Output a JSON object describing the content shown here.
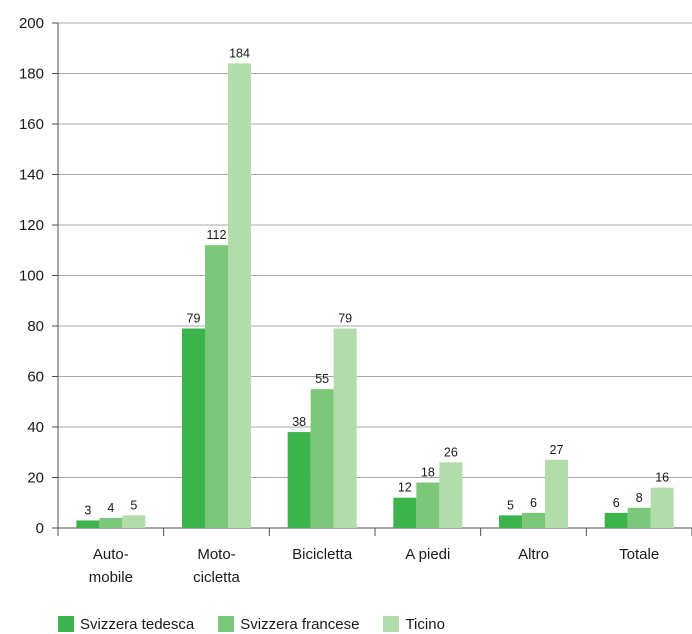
{
  "chart_data": {
    "type": "bar",
    "categories": [
      [
        "Auto-",
        "mobile"
      ],
      [
        "Moto-",
        "cicletta"
      ],
      [
        "Bicicletta"
      ],
      [
        "A piedi"
      ],
      [
        "Altro"
      ],
      [
        "Totale"
      ]
    ],
    "series": [
      {
        "name": "Svizzera tedesca",
        "color": "#3cb44b",
        "values": [
          3,
          79,
          38,
          12,
          5,
          6
        ]
      },
      {
        "name": "Svizzera francese",
        "color": "#7dc77b",
        "values": [
          4,
          112,
          55,
          18,
          6,
          8
        ]
      },
      {
        "name": "Ticino",
        "color": "#b2dca9",
        "values": [
          5,
          184,
          79,
          26,
          27,
          16
        ]
      }
    ],
    "ylim": [
      0,
      200
    ],
    "yticks": [
      0,
      20,
      40,
      60,
      80,
      100,
      120,
      140,
      160,
      180,
      200
    ],
    "grid": true,
    "legend_position": "bottom-left"
  }
}
